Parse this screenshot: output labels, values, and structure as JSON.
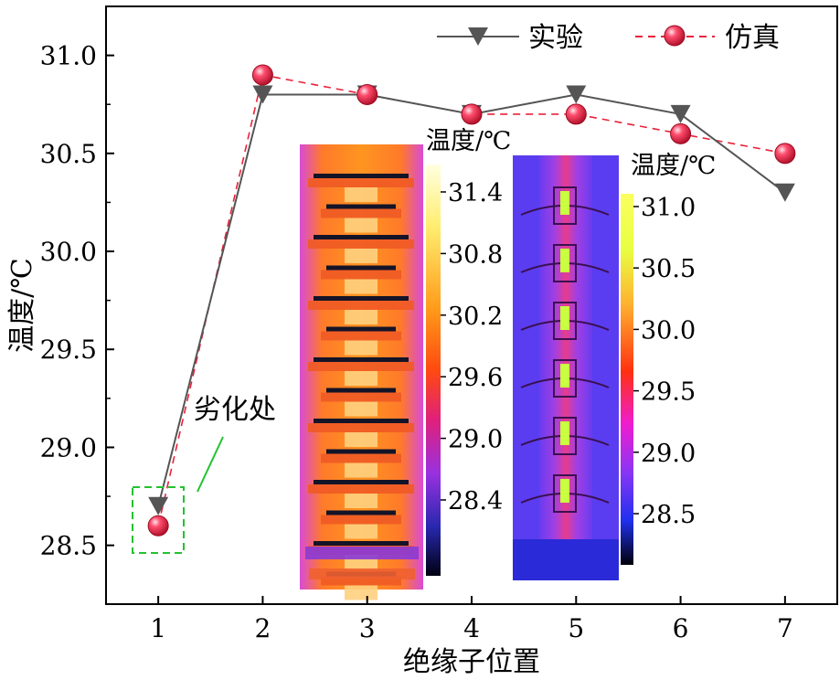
{
  "chart_data": {
    "type": "line",
    "xlabel": "绝缘子位置",
    "ylabel": "温度/℃",
    "x": [
      1,
      2,
      3,
      4,
      5,
      6,
      7
    ],
    "xlim": [
      0.5,
      7.5
    ],
    "ylim": [
      28.2,
      31.25
    ],
    "xticks": [
      "1",
      "2",
      "3",
      "4",
      "5",
      "6",
      "7"
    ],
    "yticks": [
      "28.5",
      "29.0",
      "29.5",
      "30.0",
      "30.5",
      "31.0"
    ],
    "ytick_values": [
      28.5,
      29.0,
      29.5,
      30.0,
      30.5,
      31.0
    ],
    "series": [
      {
        "name": "实验",
        "values": [
          28.7,
          30.8,
          30.8,
          30.7,
          30.8,
          30.7,
          30.3
        ],
        "color": "#555555",
        "marker": "triangle-down",
        "style": "solid"
      },
      {
        "name": "仿真",
        "values": [
          28.6,
          30.9,
          30.8,
          30.7,
          30.7,
          30.6,
          30.5
        ],
        "color": "#e8223a",
        "marker": "sphere",
        "style": "dashed"
      }
    ],
    "legend": "top-right",
    "annotation": {
      "text": "劣化处",
      "at_x": 1,
      "color": "#22c32e"
    },
    "grid": false
  },
  "insets": {
    "infrared": {
      "colorbar_title": "温度/℃",
      "colorbar_ticks": [
        "31.4",
        "30.8",
        "30.2",
        "29.6",
        "29.0",
        "28.4"
      ]
    },
    "simulation": {
      "colorbar_title": "温度/℃",
      "colorbar_ticks": [
        "31.0",
        "30.5",
        "30.0",
        "29.5",
        "29.0",
        "28.5"
      ]
    }
  }
}
